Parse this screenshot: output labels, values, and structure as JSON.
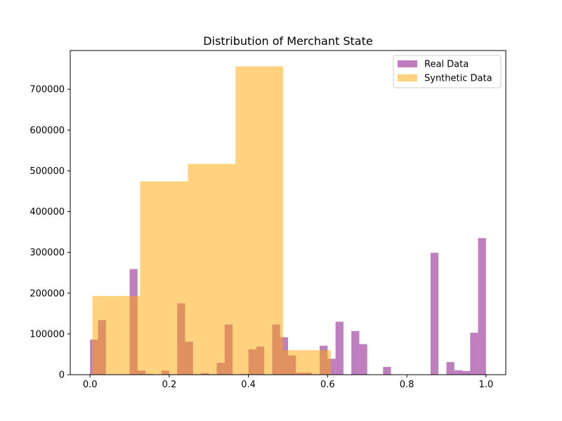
{
  "chart_data": {
    "type": "bar",
    "title": "Distribution of Merchant State",
    "xlabel": "",
    "ylabel": "",
    "xlim": [
      -0.05,
      1.05
    ],
    "ylim": [
      0,
      795000
    ],
    "x_ticks": [
      0.0,
      0.2,
      0.4,
      0.6,
      0.8,
      1.0
    ],
    "x_tick_labels": [
      "0.0",
      "0.2",
      "0.4",
      "0.6",
      "0.8",
      "1.0"
    ],
    "y_ticks": [
      0,
      100000,
      200000,
      300000,
      400000,
      500000,
      600000,
      700000
    ],
    "y_tick_labels": [
      "0",
      "100000",
      "200000",
      "300000",
      "400000",
      "500000",
      "600000",
      "700000"
    ],
    "grid": false,
    "legend_position": "top-right",
    "series": [
      {
        "name": "Real Data",
        "color": "#800080",
        "opacity": 0.5,
        "bin_width": 0.02,
        "bin_starts": [
          0.0,
          0.02,
          0.1,
          0.12,
          0.14,
          0.18,
          0.22,
          0.24,
          0.28,
          0.32,
          0.34,
          0.38,
          0.4,
          0.42,
          0.46,
          0.48,
          0.5,
          0.52,
          0.54,
          0.58,
          0.6,
          0.62,
          0.66,
          0.68,
          0.74,
          0.86,
          0.9,
          0.92,
          0.94,
          0.96,
          0.98
        ],
        "values": [
          86000,
          134000,
          259000,
          10000,
          2000,
          10000,
          175000,
          81000,
          4000,
          29000,
          123000,
          2000,
          62000,
          69000,
          123000,
          92000,
          47000,
          5000,
          5000,
          71000,
          39000,
          130000,
          107000,
          75000,
          19000,
          299000,
          31000,
          11000,
          9000,
          103000,
          335000
        ]
      },
      {
        "name": "Synthetic Data",
        "color": "#FFA500",
        "opacity": 0.5,
        "bin_width": 0.1204,
        "bin_starts": [
          0.006,
          0.1264,
          0.2468,
          0.3672,
          0.4876
        ],
        "values": [
          193000,
          474000,
          517000,
          756000,
          60000
        ]
      }
    ]
  }
}
